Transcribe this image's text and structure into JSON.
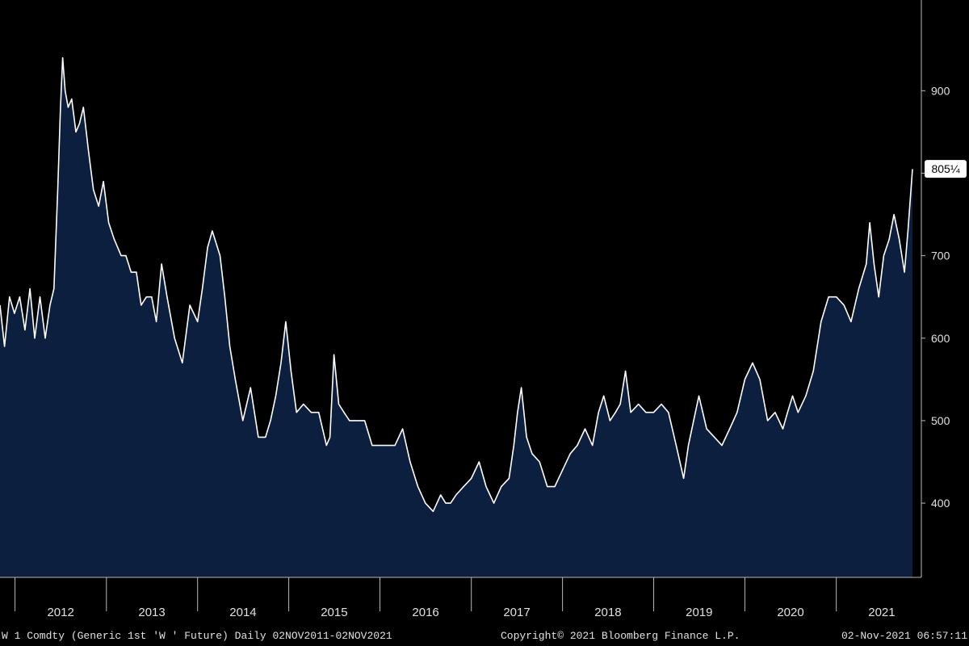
{
  "colors": {
    "background": "#000000",
    "area_fill": "#0c1f3f",
    "line": "#ffffff",
    "axis": "#b8b8b8",
    "tick_text": "#e0e0e0",
    "last_value_box_bg": "#ffffff",
    "last_value_box_text": "#000000"
  },
  "chart_data": {
    "type": "area",
    "title": "",
    "xlabel": "",
    "ylabel": "",
    "y_axis_position": "right",
    "grid": false,
    "legend": "none",
    "xlim": [
      "2011-11-02",
      "2021-11-02"
    ],
    "ylim": [
      310,
      1010
    ],
    "y_ticks": [
      400,
      500,
      600,
      700,
      800,
      900
    ],
    "y_tick_labels": [
      "400",
      "500",
      "600",
      "700",
      "",
      "900"
    ],
    "x_tick_labels": [
      "2012",
      "2013",
      "2014",
      "2015",
      "2016",
      "2017",
      "2018",
      "2019",
      "2020",
      "2021"
    ],
    "last_value_label": "805¼",
    "last_value": 805.25,
    "series": [
      {
        "name": "W 1 Comdty",
        "x": [
          "2011-11-02",
          "2011-11-20",
          "2011-12-10",
          "2011-12-30",
          "2012-01-20",
          "2012-02-10",
          "2012-03-01",
          "2012-03-20",
          "2012-04-10",
          "2012-05-01",
          "2012-05-20",
          "2012-06-05",
          "2012-06-20",
          "2012-07-01",
          "2012-07-10",
          "2012-07-20",
          "2012-08-01",
          "2012-08-15",
          "2012-09-01",
          "2012-09-15",
          "2012-10-01",
          "2012-10-20",
          "2012-11-10",
          "2012-12-01",
          "2012-12-20",
          "2013-01-10",
          "2013-02-01",
          "2013-03-01",
          "2013-03-20",
          "2013-04-10",
          "2013-05-01",
          "2013-05-20",
          "2013-06-10",
          "2013-07-01",
          "2013-07-20",
          "2013-08-10",
          "2013-09-01",
          "2013-10-01",
          "2013-11-01",
          "2013-12-01",
          "2014-01-01",
          "2014-01-20",
          "2014-02-10",
          "2014-03-01",
          "2014-04-01",
          "2014-04-20",
          "2014-05-10",
          "2014-06-01",
          "2014-07-01",
          "2014-08-01",
          "2014-09-01",
          "2014-09-30",
          "2014-10-20",
          "2014-11-10",
          "2014-12-01",
          "2014-12-20",
          "2015-01-10",
          "2015-02-01",
          "2015-03-01",
          "2015-04-01",
          "2015-05-01",
          "2015-06-01",
          "2015-06-15",
          "2015-07-01",
          "2015-07-20",
          "2015-08-10",
          "2015-09-01",
          "2015-10-01",
          "2015-11-01",
          "2015-12-01",
          "2016-01-01",
          "2016-02-01",
          "2016-03-01",
          "2016-04-01",
          "2016-05-01",
          "2016-06-01",
          "2016-07-01",
          "2016-08-01",
          "2016-08-31",
          "2016-09-20",
          "2016-10-10",
          "2016-11-01",
          "2016-12-01",
          "2017-01-01",
          "2017-02-01",
          "2017-03-01",
          "2017-04-01",
          "2017-05-01",
          "2017-06-01",
          "2017-06-20",
          "2017-07-05",
          "2017-07-20",
          "2017-08-10",
          "2017-09-01",
          "2017-10-01",
          "2017-11-01",
          "2017-12-01",
          "2018-01-01",
          "2018-02-01",
          "2018-03-01",
          "2018-04-01",
          "2018-05-01",
          "2018-05-25",
          "2018-06-15",
          "2018-07-10",
          "2018-08-01",
          "2018-08-20",
          "2018-09-10",
          "2018-10-01",
          "2018-11-01",
          "2018-12-01",
          "2019-01-01",
          "2019-02-01",
          "2019-03-01",
          "2019-04-01",
          "2019-05-01",
          "2019-05-20",
          "2019-06-10",
          "2019-07-01",
          "2019-08-01",
          "2019-09-01",
          "2019-10-01",
          "2019-11-01",
          "2019-12-01",
          "2020-01-01",
          "2020-02-01",
          "2020-03-01",
          "2020-04-01",
          "2020-05-01",
          "2020-06-01",
          "2020-06-20",
          "2020-07-10",
          "2020-08-01",
          "2020-09-01",
          "2020-10-01",
          "2020-11-01",
          "2020-12-01",
          "2021-01-01",
          "2021-02-01",
          "2021-03-01",
          "2021-04-01",
          "2021-05-01",
          "2021-05-15",
          "2021-06-01",
          "2021-06-20",
          "2021-07-10",
          "2021-08-01",
          "2021-08-20",
          "2021-09-10",
          "2021-10-01",
          "2021-10-15",
          "2021-11-02"
        ],
        "values": [
          640,
          590,
          650,
          630,
          650,
          610,
          660,
          600,
          650,
          600,
          640,
          660,
          780,
          880,
          940,
          900,
          880,
          890,
          850,
          860,
          880,
          830,
          780,
          760,
          790,
          740,
          720,
          700,
          700,
          680,
          680,
          640,
          650,
          650,
          620,
          690,
          650,
          600,
          570,
          640,
          620,
          660,
          710,
          730,
          700,
          650,
          590,
          550,
          500,
          540,
          480,
          480,
          500,
          530,
          570,
          620,
          560,
          510,
          520,
          510,
          510,
          470,
          480,
          580,
          520,
          510,
          500,
          500,
          500,
          470,
          470,
          470,
          470,
          490,
          450,
          420,
          400,
          390,
          410,
          400,
          400,
          410,
          420,
          430,
          450,
          420,
          400,
          420,
          430,
          470,
          510,
          540,
          480,
          460,
          450,
          420,
          420,
          440,
          460,
          470,
          490,
          470,
          510,
          530,
          500,
          510,
          520,
          560,
          510,
          520,
          510,
          510,
          520,
          510,
          470,
          430,
          470,
          500,
          530,
          490,
          480,
          470,
          490,
          510,
          550,
          570,
          550,
          500,
          510,
          490,
          510,
          530,
          510,
          530,
          560,
          620,
          650,
          650,
          640,
          620,
          660,
          690,
          740,
          690,
          650,
          700,
          720,
          750,
          720,
          680,
          730,
          805
        ]
      }
    ]
  },
  "footer": {
    "left": "W 1 Comdty (Generic 1st 'W ' Future)  Daily 02NOV2011-02NOV2021",
    "center": "Copyright© 2021 Bloomberg Finance L.P.",
    "right": "02-Nov-2021 06:57:11"
  }
}
